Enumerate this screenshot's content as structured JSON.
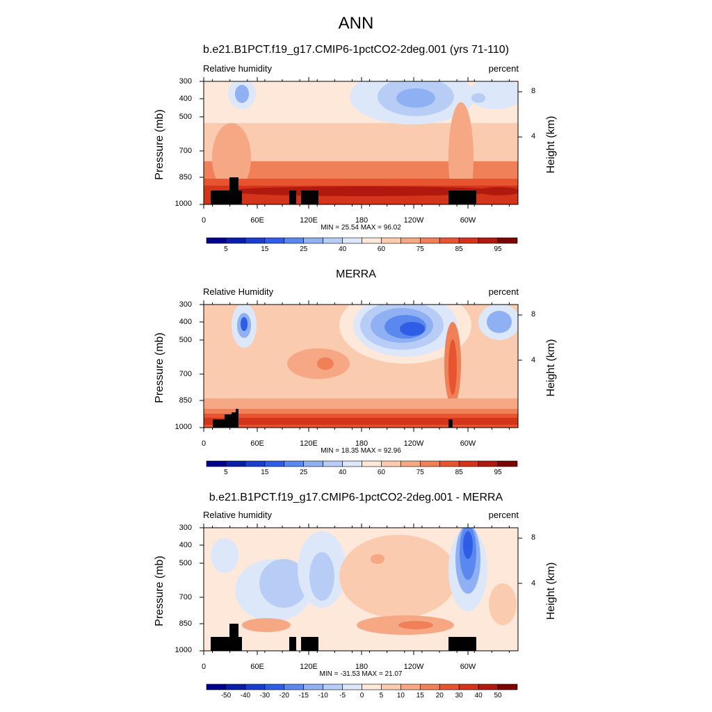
{
  "figure": {
    "title": "ANN"
  },
  "chart_data": [
    {
      "type": "heatmap",
      "title": "b.e21.B1PCT.f19_g17.CMIP6-1pctCO2-2deg.001 (yrs 71-110)",
      "variable": "Relative humidity",
      "units": "percent",
      "ylabel": "Pressure (mb)",
      "ylabel_right": "Height (km)",
      "yticks": [
        "300",
        "400",
        "500",
        "700",
        "850",
        "1000"
      ],
      "yticks_right": [
        "8",
        "4"
      ],
      "xticks": [
        "0",
        "60E",
        "120E",
        "180",
        "120W",
        "60W"
      ],
      "minmax_text": "MIN =  25.54  MAX =  96.02",
      "min": 25.54,
      "max": 96.02,
      "colorbar_levels": [
        "5",
        "15",
        "25",
        "40",
        "60",
        "75",
        "85",
        "95"
      ],
      "contour_levels": [
        5,
        10,
        15,
        20,
        25,
        30,
        40,
        50,
        60,
        70,
        75,
        80,
        85,
        90,
        95
      ],
      "colors": [
        "#00008b",
        "#0a1fa8",
        "#1a3fcc",
        "#2e5ee6",
        "#5a88ee",
        "#8fb0f2",
        "#b8cdf6",
        "#dde7fa",
        "#fde8da",
        "#fbcbb0",
        "#f6a884",
        "#ef8057",
        "#e65530",
        "#d4341a",
        "#b01a0e",
        "#7a0404"
      ]
    },
    {
      "type": "heatmap",
      "title": "MERRA",
      "variable": "Relative Humidity",
      "units": "percent",
      "ylabel": "Pressure (mb)",
      "ylabel_right": "Height (km)",
      "yticks": [
        "300",
        "400",
        "500",
        "700",
        "850",
        "1000"
      ],
      "yticks_right": [
        "8",
        "4"
      ],
      "xticks": [
        "0",
        "60E",
        "120E",
        "180",
        "120W",
        "60W"
      ],
      "minmax_text": "MIN =  18.35  MAX =  92.96",
      "min": 18.35,
      "max": 92.96,
      "colorbar_levels": [
        "5",
        "15",
        "25",
        "40",
        "60",
        "75",
        "85",
        "95"
      ],
      "contour_levels": [
        5,
        10,
        15,
        20,
        25,
        30,
        40,
        50,
        60,
        70,
        75,
        80,
        85,
        90,
        95
      ],
      "colors": [
        "#00008b",
        "#0a1fa8",
        "#1a3fcc",
        "#2e5ee6",
        "#5a88ee",
        "#8fb0f2",
        "#b8cdf6",
        "#dde7fa",
        "#fde8da",
        "#fbcbb0",
        "#f6a884",
        "#ef8057",
        "#e65530",
        "#d4341a",
        "#b01a0e",
        "#7a0404"
      ]
    },
    {
      "type": "heatmap",
      "title": "b.e21.B1PCT.f19_g17.CMIP6-1pctCO2-2deg.001 - MERRA",
      "variable": "Relative humidity",
      "units": "percent",
      "ylabel": "Pressure (mb)",
      "ylabel_right": "Height (km)",
      "yticks": [
        "300",
        "400",
        "500",
        "700",
        "850",
        "1000"
      ],
      "yticks_right": [
        "8",
        "4"
      ],
      "xticks": [
        "0",
        "60E",
        "120E",
        "180",
        "120W",
        "60W"
      ],
      "minmax_text": "MIN = -31.53  MAX =  21.07",
      "min": -31.53,
      "max": 21.07,
      "colorbar_levels": [
        "-50",
        "-40",
        "-30",
        "-20",
        "-15",
        "-10",
        "-5",
        "0",
        "5",
        "10",
        "15",
        "20",
        "30",
        "40",
        "50"
      ],
      "contour_levels": [
        -50,
        -40,
        -30,
        -20,
        -15,
        -10,
        -5,
        0,
        5,
        10,
        15,
        20,
        30,
        40,
        50
      ],
      "colors": [
        "#00008b",
        "#0a1fa8",
        "#1a3fcc",
        "#2e5ee6",
        "#5a88ee",
        "#8fb0f2",
        "#b8cdf6",
        "#dde7fa",
        "#fde8da",
        "#fbcbb0",
        "#f6a884",
        "#ef8057",
        "#e65530",
        "#d4341a",
        "#b01a0e",
        "#7a0404"
      ]
    }
  ]
}
